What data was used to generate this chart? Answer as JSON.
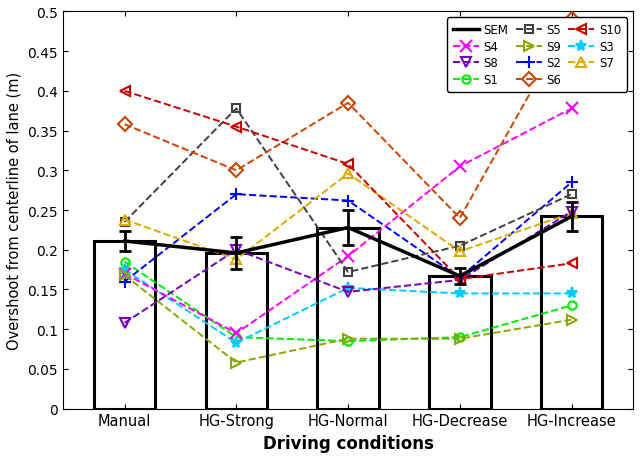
{
  "conditions": [
    "Manual",
    "HG-Strong",
    "HG-Normal",
    "HG-Decrease",
    "HG-Increase"
  ],
  "x_positions": [
    0,
    1,
    2,
    3,
    4
  ],
  "SEM_mean": [
    0.211,
    0.196,
    0.228,
    0.167,
    0.242
  ],
  "SEM_err": [
    0.013,
    0.02,
    0.022,
    0.01,
    0.018
  ],
  "S1": [
    0.185,
    0.09,
    0.085,
    0.09,
    0.13
  ],
  "S2": [
    0.16,
    0.27,
    0.262,
    0.165,
    0.285
  ],
  "S3": [
    0.175,
    0.083,
    0.152,
    0.145,
    0.145
  ],
  "S4": [
    0.17,
    0.095,
    0.192,
    0.305,
    0.378
  ],
  "S5": [
    0.235,
    0.378,
    0.172,
    0.205,
    0.27
  ],
  "S6": [
    0.358,
    0.3,
    0.385,
    0.24,
    0.49
  ],
  "S7": [
    0.238,
    0.188,
    0.296,
    0.198,
    0.246
  ],
  "S8": [
    0.108,
    0.2,
    0.147,
    0.162,
    0.248
  ],
  "S9": [
    0.168,
    0.058,
    0.088,
    0.088,
    0.112
  ],
  "S10": [
    0.4,
    0.355,
    0.308,
    0.163,
    0.183
  ],
  "ylim": [
    0,
    0.5
  ],
  "yticks": [
    0,
    0.05,
    0.1,
    0.15,
    0.2,
    0.25,
    0.3,
    0.35,
    0.4,
    0.45,
    0.5
  ],
  "xlabel": "Driving conditions",
  "ylabel": "Overshoot from centerline of lane (m)",
  "series_colors": {
    "S1": "#00ee00",
    "S2": "#0000ff",
    "S3": "#00ccff",
    "S4": "#ff00ff",
    "S5": "#404040",
    "S6": "#cc4400",
    "S7": "#ddaa00",
    "S8": "#7700bb",
    "S9": "#88aa00",
    "S10": "#cc0000"
  }
}
